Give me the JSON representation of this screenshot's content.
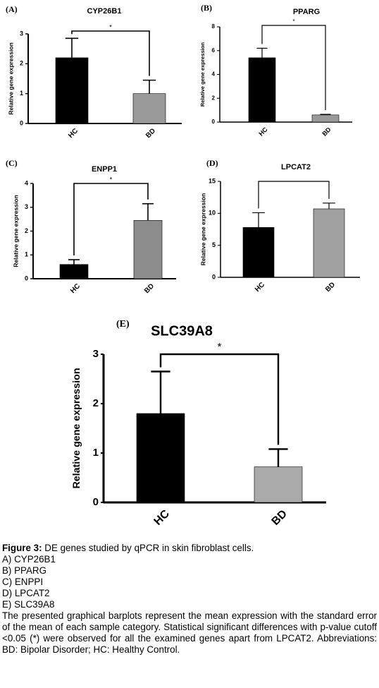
{
  "chart_data": [
    {
      "type": "bar",
      "panel": "(A)",
      "title": "CYP26B1",
      "y_label": "Relative gene expression",
      "categories": [
        "HC",
        "BD"
      ],
      "values": [
        2.2,
        1.0
      ],
      "errors": [
        0.65,
        0.45
      ],
      "colors": [
        "#000000",
        "#9a9a9a"
      ],
      "ylim": [
        0,
        3
      ],
      "yticks": [
        0,
        1,
        2,
        3
      ],
      "annotation": "*"
    },
    {
      "type": "bar",
      "panel": "(B)",
      "title": "PPARG",
      "y_label": "Relative gene expression",
      "categories": [
        "HC",
        "BD"
      ],
      "values": [
        5.4,
        0.6
      ],
      "errors": [
        0.8,
        0.05
      ],
      "colors": [
        "#000000",
        "#9a9a9a"
      ],
      "ylim": [
        0,
        8
      ],
      "yticks": [
        0,
        2,
        4,
        6,
        8
      ],
      "annotation": "*"
    },
    {
      "type": "bar",
      "panel": "(C)",
      "title": "ENPP1",
      "y_label": "Relative gene expression",
      "categories": [
        "HC",
        "BD"
      ],
      "values": [
        0.6,
        2.45
      ],
      "errors": [
        0.2,
        0.7
      ],
      "colors": [
        "#000000",
        "#8c8c8c"
      ],
      "ylim": [
        0,
        4
      ],
      "yticks": [
        0,
        1,
        2,
        3,
        4
      ],
      "annotation": "*"
    },
    {
      "type": "bar",
      "panel": "(D)",
      "title": "LPCAT2",
      "y_label": "Relative gene expression",
      "categories": [
        "HC",
        "BD"
      ],
      "values": [
        7.8,
        10.7
      ],
      "errors": [
        2.3,
        0.9
      ],
      "colors": [
        "#000000",
        "#a0a0a0"
      ],
      "ylim": [
        0,
        15
      ],
      "yticks": [
        0,
        5,
        10,
        15
      ]
    },
    {
      "type": "bar",
      "panel": "(E)",
      "title": "SLC39A8",
      "y_label": "Relative gene expression",
      "categories": [
        "HC",
        "BD"
      ],
      "values": [
        1.8,
        0.72
      ],
      "errors": [
        0.85,
        0.36
      ],
      "colors": [
        "#000000",
        "#aaaaaa"
      ],
      "ylim": [
        0,
        3
      ],
      "yticks": [
        0,
        1,
        2,
        3
      ],
      "annotation": "*"
    }
  ],
  "caption": {
    "label": "Figure 3:",
    "text": "DE genes studied by qPCR in skin fibroblast cells.",
    "items": [
      "A) CYP26B1",
      "B) PPARG",
      "C) ENPPI",
      "D) LPCAT2",
      "E) SLC39A8"
    ],
    "paragraph": "The presented graphical barplots represent the mean expression with the standard error of the mean of each sample category. Statistical significant differences with p-value cutoff <0.05 (*) were observed for all the examined genes apart from LPCAT2. Abbreviations: BD: Bipolar Disorder; HC: Healthy Control."
  }
}
